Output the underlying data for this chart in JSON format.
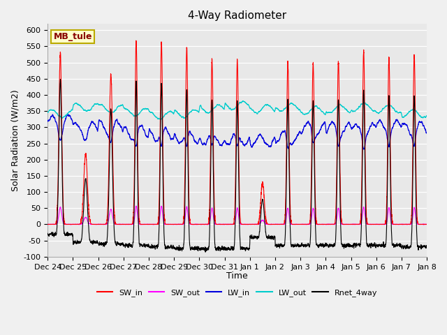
{
  "title": "4-Way Radiometer",
  "xlabel": "Time",
  "ylabel": "Solar Radiation (W/m2)",
  "ylim": [
    -100,
    620
  ],
  "yticks": [
    -100,
    -50,
    0,
    50,
    100,
    150,
    200,
    250,
    300,
    350,
    400,
    450,
    500,
    550,
    600
  ],
  "station_label": "MB_tule",
  "legend": [
    "SW_in",
    "SW_out",
    "LW_in",
    "LW_out",
    "Rnet_4way"
  ],
  "colors": {
    "SW_in": "#ff0000",
    "SW_out": "#ff00ff",
    "LW_in": "#0000dd",
    "LW_out": "#00cccc",
    "Rnet_4way": "#000000"
  },
  "fig_bg": "#f0f0f0",
  "plot_bg": "#e8e8e8",
  "n_days": 15,
  "points_per_day": 288,
  "sw_peaks": [
    530,
    220,
    465,
    565,
    565,
    545,
    510,
    505,
    130,
    500,
    500,
    505,
    535,
    515,
    520
  ],
  "sw_width": [
    0.055,
    0.07,
    0.06,
    0.045,
    0.045,
    0.045,
    0.045,
    0.045,
    0.065,
    0.045,
    0.045,
    0.045,
    0.045,
    0.045,
    0.045
  ],
  "lw_in_base": [
    315,
    295,
    300,
    285,
    280,
    270,
    265,
    265,
    260,
    270,
    295,
    295,
    290,
    300,
    295
  ],
  "lw_out_base": [
    342,
    362,
    357,
    347,
    337,
    342,
    357,
    367,
    357,
    362,
    352,
    357,
    362,
    357,
    342
  ],
  "night_rnet": [
    -30,
    -55,
    -60,
    -65,
    -70,
    -75,
    -75,
    -75,
    -40,
    -65,
    -65,
    -65,
    -65,
    -65,
    -70
  ],
  "title_fontsize": 11,
  "label_fontsize": 9,
  "tick_fontsize": 8
}
